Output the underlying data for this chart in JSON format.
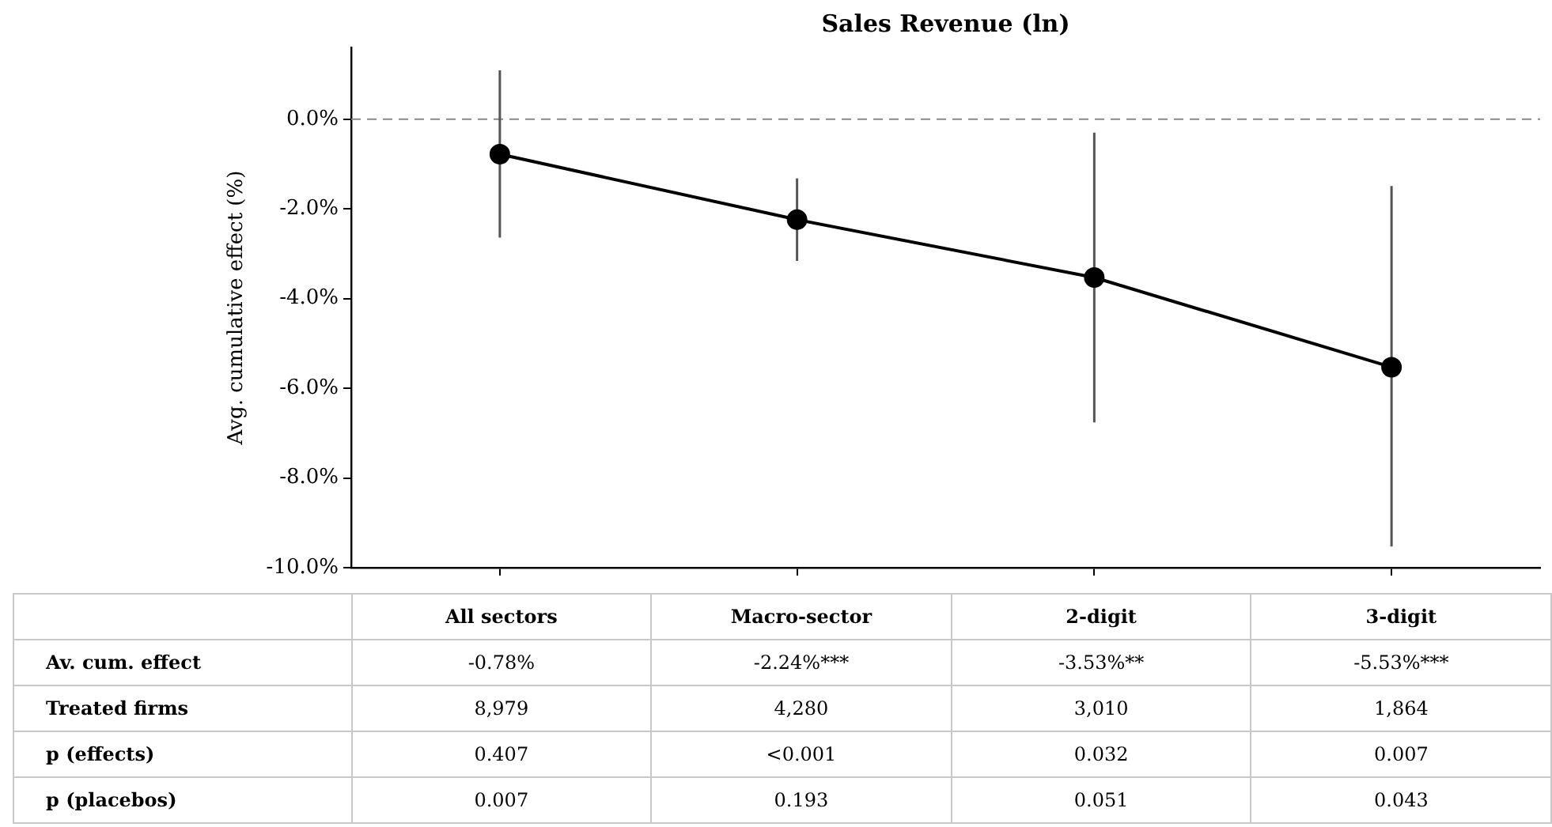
{
  "chart_data": {
    "type": "line",
    "title": "Sales Revenue (ln)",
    "ylabel": "Avg. cumulative effect (%)",
    "categories": [
      "All sectors",
      "Macro-sector",
      "2-digit",
      "3-digit"
    ],
    "series": [
      {
        "color": "#000000",
        "values": [
          -0.78,
          -2.24,
          -3.53,
          -5.53
        ],
        "errors": [
          [
            -2.64,
            1.09
          ],
          [
            -3.16,
            -1.32
          ],
          [
            -6.76,
            -0.3
          ],
          [
            -9.53,
            -1.49
          ]
        ],
        "value_labels": [
          "-0.78%",
          "-2.24%***",
          "-3.53%**",
          "-5.53%***"
        ]
      }
    ],
    "ylim": [
      -10,
      1.6
    ],
    "yticks": [
      {
        "value": -10,
        "label": "-10.0%"
      },
      {
        "value": -8,
        "label": "-8.0%"
      },
      {
        "value": -6,
        "label": "-6.0%"
      },
      {
        "value": -4,
        "label": "-4.0%"
      },
      {
        "value": -2,
        "label": "-2.0%"
      },
      {
        "value": 0,
        "label": "0.0%"
      }
    ],
    "ref_lines": [
      {
        "axis": "y",
        "value": 0,
        "color": "#888888",
        "line_style": "dashed"
      }
    ],
    "annotations": [
      "Av. cum. effect",
      "Treated firms",
      "8,979",
      "4,280",
      "3,010",
      "1,864",
      "p (effects)",
      "0.407",
      "<0.001",
      "0.032",
      "0.007",
      "p (placebos)",
      "0.007",
      "0.193",
      "0.051",
      "0.043"
    ],
    "grid": false,
    "legend": false,
    "marker": "circle",
    "line_style": "solid",
    "tick_labels": "y"
  }
}
